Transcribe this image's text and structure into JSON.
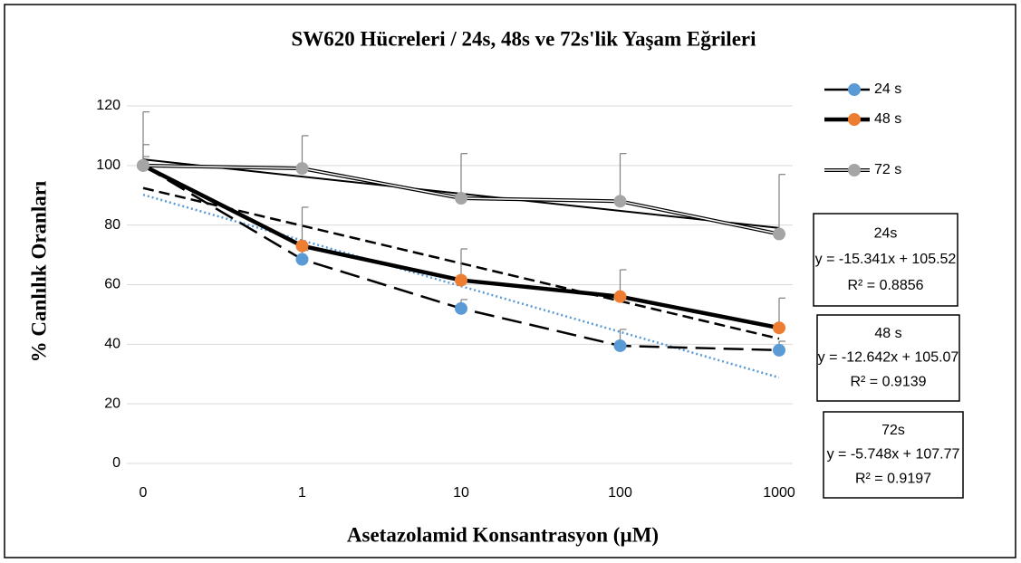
{
  "chart_data": {
    "type": "line",
    "title": "SW620 Hücreleri / 24s, 48s ve 72s'lik Yaşam Eğrileri",
    "xlabel": "Asetazolamid Konsantrasyon (µM)",
    "ylabel": "% Canlılık Oranları",
    "categories": [
      "0",
      "1",
      "10",
      "100",
      "1000"
    ],
    "ylim": [
      0,
      120
    ],
    "yticks": [
      0,
      20,
      40,
      60,
      80,
      100,
      120
    ],
    "grid": true,
    "series": [
      {
        "name": "24 s",
        "color": "#5b9bd5",
        "line_style": "dash",
        "values": [
          100,
          68.5,
          52,
          39.5,
          38
        ],
        "errors": [
          7,
          3,
          3,
          5.5,
          3
        ]
      },
      {
        "name": "48 s",
        "color": "#ed7d31",
        "line_style": "thick",
        "values": [
          100,
          73,
          61.5,
          56,
          45.5
        ],
        "errors": [
          3,
          13,
          10.5,
          9,
          10
        ]
      },
      {
        "name": "72 s",
        "color": "#a5a5a5",
        "line_style": "double",
        "values": [
          100,
          99,
          89,
          88,
          77
        ],
        "errors": [
          18,
          11,
          15,
          16,
          20
        ]
      }
    ],
    "trendlines": [
      {
        "name": "24s",
        "slope": -15.341,
        "intercept": 105.52,
        "equation": "y = -15.341x + 105.52",
        "r2_label": "R² = 0.8856",
        "style": "dotted",
        "color": "#5b9bd5"
      },
      {
        "name": "48 s",
        "slope": -12.642,
        "intercept": 105.07,
        "equation": "y = -12.642x + 105.07",
        "r2_label": "R² = 0.9139",
        "style": "dashed",
        "color": "#000000"
      },
      {
        "name": "72s",
        "slope": -5.748,
        "intercept": 107.77,
        "equation": "y = -5.748x + 107.77",
        "r2_label": "R² = 0.9197",
        "style": "solid",
        "color": "#000000"
      }
    ]
  }
}
